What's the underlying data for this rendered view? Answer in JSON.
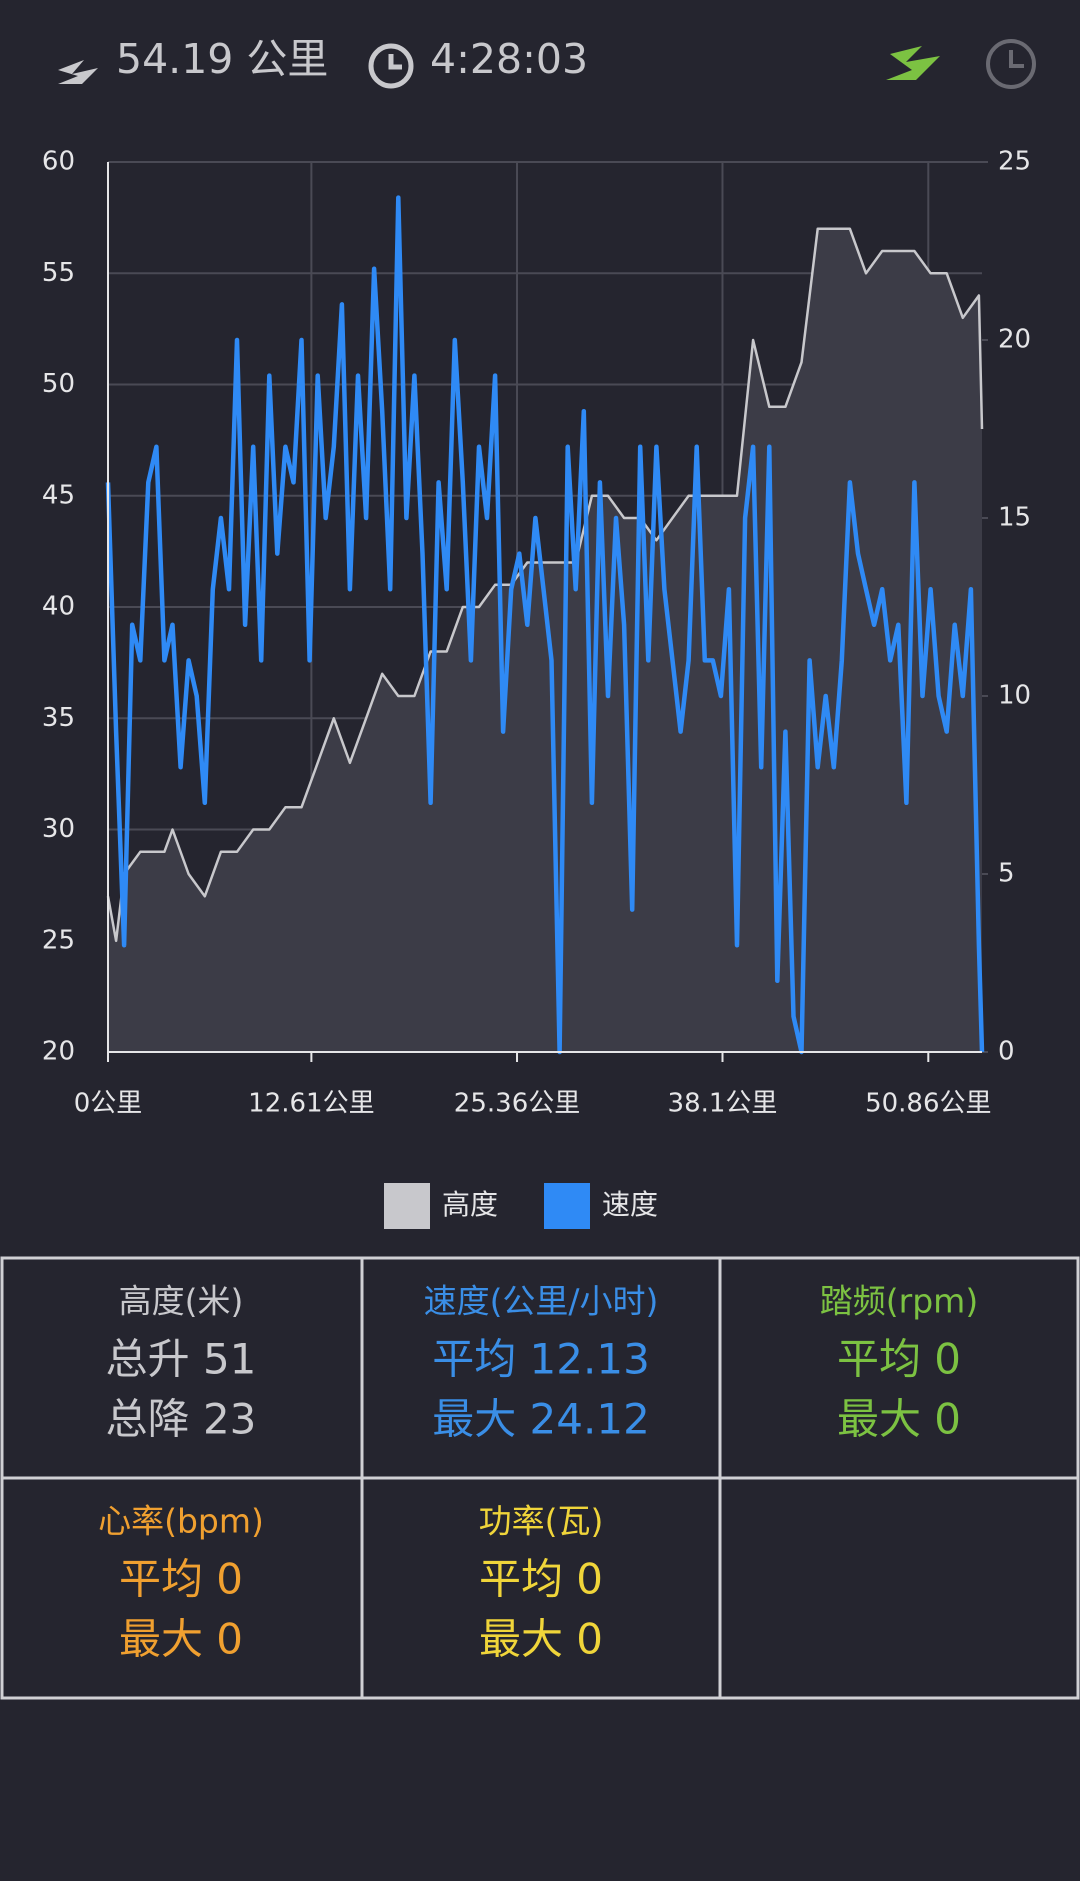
{
  "header": {
    "distance": "54.19 公里",
    "duration": "4:28:03"
  },
  "chart_data": {
    "type": "line",
    "xlim": [
      0,
      54.19
    ],
    "xticks": [
      {
        "value": 0,
        "label": "0公里"
      },
      {
        "value": 12.61,
        "label": "12.61公里"
      },
      {
        "value": 25.36,
        "label": "25.36公里"
      },
      {
        "value": 38.1,
        "label": "38.1公里"
      },
      {
        "value": 50.86,
        "label": "50.86公里"
      }
    ],
    "ylim": [
      20,
      60
    ],
    "yticks": [
      20,
      25,
      30,
      35,
      40,
      45,
      50,
      55,
      60
    ],
    "y2lim": [
      0,
      25
    ],
    "y2ticks": [
      0,
      5,
      10,
      15,
      20,
      25
    ],
    "grid": true,
    "legend": "bottom",
    "series": [
      {
        "name": "高度",
        "color": "#c8c8cc",
        "area": true,
        "x": [
          0,
          0.5,
          1,
          2,
          3.5,
          4,
          5,
          6,
          7,
          8,
          9,
          10,
          11,
          12,
          13,
          14,
          15,
          16,
          17,
          18,
          19,
          20,
          21,
          22,
          23,
          24,
          25,
          26,
          27,
          28,
          29,
          30,
          31,
          32,
          33,
          34,
          35,
          36,
          37,
          38,
          39,
          40,
          41,
          42,
          43,
          44,
          45,
          46,
          47,
          48,
          49,
          50,
          51,
          52,
          53,
          54,
          54.19
        ],
        "values": [
          27,
          25,
          28,
          29,
          29,
          30,
          28,
          27,
          29,
          29,
          30,
          30,
          31,
          31,
          33,
          35,
          33,
          35,
          37,
          36,
          36,
          38,
          38,
          40,
          40,
          41,
          41,
          42,
          42,
          42,
          42,
          45,
          45,
          44,
          44,
          43,
          44,
          45,
          45,
          45,
          45,
          52,
          49,
          49,
          51,
          57,
          57,
          57,
          55,
          56,
          56,
          56,
          55,
          55,
          53,
          54,
          48
        ]
      },
      {
        "name": "速度",
        "color": "#2f8af5",
        "axis": "y2",
        "x": [
          0,
          0.5,
          1,
          1.5,
          2,
          2.5,
          3,
          3.5,
          4,
          4.5,
          5,
          5.5,
          6,
          6.5,
          7,
          7.5,
          8,
          8.5,
          9,
          9.5,
          10,
          10.5,
          11,
          11.5,
          12,
          12.5,
          13,
          13.5,
          14,
          14.5,
          15,
          15.5,
          16,
          16.5,
          17,
          17.5,
          18,
          18.5,
          19,
          19.5,
          20,
          20.5,
          21,
          21.5,
          22,
          22.5,
          23,
          23.5,
          24,
          24.5,
          25,
          25.5,
          26,
          26.5,
          27,
          27.5,
          28,
          28.5,
          29,
          29.5,
          30,
          30.5,
          31,
          31.5,
          32,
          32.5,
          33,
          33.5,
          34,
          34.5,
          35,
          35.5,
          36,
          36.5,
          37,
          37.5,
          38,
          38.5,
          39,
          39.5,
          40,
          40.5,
          41,
          41.5,
          42,
          42.5,
          43,
          43.5,
          44,
          44.5,
          45,
          45.5,
          46,
          46.5,
          47,
          47.5,
          48,
          48.5,
          49,
          49.5,
          50,
          50.5,
          51,
          51.5,
          52,
          52.5,
          53,
          53.5,
          54,
          54.19
        ],
        "values": [
          16,
          9,
          3,
          12,
          11,
          16,
          17,
          11,
          12,
          8,
          11,
          10,
          7,
          13,
          15,
          13,
          20,
          12,
          17,
          11,
          19,
          14,
          17,
          16,
          20,
          11,
          19,
          15,
          17,
          21,
          13,
          19,
          15,
          22,
          18,
          13,
          24,
          15,
          19,
          14,
          7,
          16,
          13,
          20,
          16,
          11,
          17,
          15,
          19,
          9,
          13,
          14,
          12,
          15,
          13,
          11,
          0,
          17,
          13,
          18,
          7,
          16,
          10,
          15,
          12,
          4,
          17,
          11,
          17,
          13,
          11,
          9,
          11,
          17,
          11,
          11,
          10,
          13,
          3,
          15,
          17,
          8,
          17,
          2,
          9,
          1,
          0,
          11,
          8,
          10,
          8,
          11,
          16,
          14,
          13,
          12,
          13,
          11,
          12,
          7,
          16,
          10,
          13,
          10,
          9,
          12,
          10,
          13,
          3,
          0
        ]
      }
    ]
  },
  "stats": [
    {
      "title": "高度(米)",
      "lines": [
        "总升 51",
        "总降 23"
      ],
      "color": "#c8c8cc"
    },
    {
      "title": "速度(公里/小时)",
      "lines": [
        "平均 12.13",
        "最大 24.12"
      ],
      "color": "#3a8ee6"
    },
    {
      "title": "踏频(rpm)",
      "lines": [
        "平均 0",
        "最大 0"
      ],
      "color": "#7cc242"
    },
    {
      "title": "心率(bpm)",
      "lines": [
        "平均 0",
        "最大 0"
      ],
      "color": "#f0a030"
    },
    {
      "title": "功率(瓦)",
      "lines": [
        "平均 0",
        "最大 0"
      ],
      "color": "#f0d53a"
    }
  ]
}
